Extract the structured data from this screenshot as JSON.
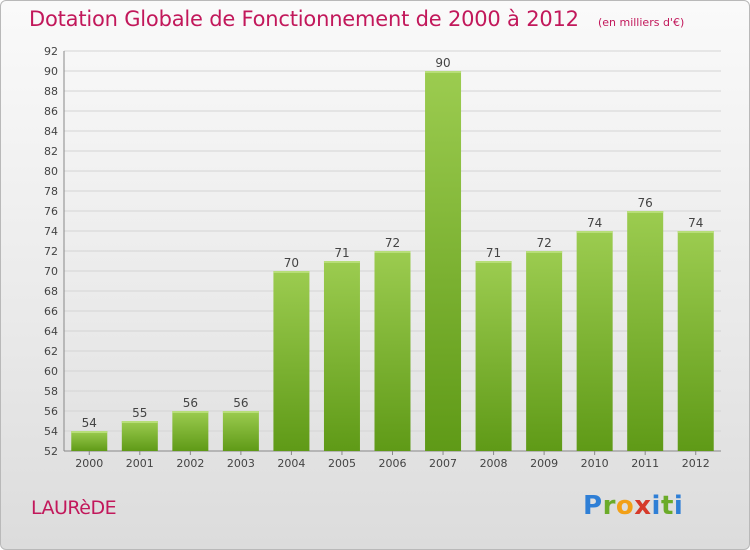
{
  "chart_data": {
    "type": "bar",
    "title": "Dotation Globale de Fonctionnement de 2000 à 2012",
    "subtitle": "(en milliers d'€)",
    "categories": [
      "2000",
      "2001",
      "2002",
      "2003",
      "2004",
      "2005",
      "2006",
      "2007",
      "2008",
      "2009",
      "2010",
      "2011",
      "2012"
    ],
    "values": [
      54,
      55,
      56,
      56,
      70,
      71,
      72,
      90,
      71,
      72,
      74,
      76,
      74
    ],
    "ylim": [
      52,
      92
    ],
    "yticks": [
      52,
      54,
      56,
      58,
      60,
      62,
      64,
      66,
      68,
      70,
      72,
      74,
      76,
      78,
      80,
      82,
      84,
      86,
      88,
      90,
      92
    ],
    "grid": true,
    "colors": {
      "bar_light": "#9ccc50",
      "bar_dark": "#5f9a17",
      "title": "#c2185b",
      "grid": "#d4d4d4"
    }
  },
  "footer": {
    "commune": "LAURèDE",
    "brand": [
      "P",
      "r",
      "o",
      "x",
      "i",
      "t",
      "i"
    ],
    "brand_colors": [
      "#2f7fd6",
      "#6bab29",
      "#f2a017",
      "#d63a2a",
      "#2f7fd6",
      "#6bab29",
      "#2f7fd6"
    ]
  }
}
